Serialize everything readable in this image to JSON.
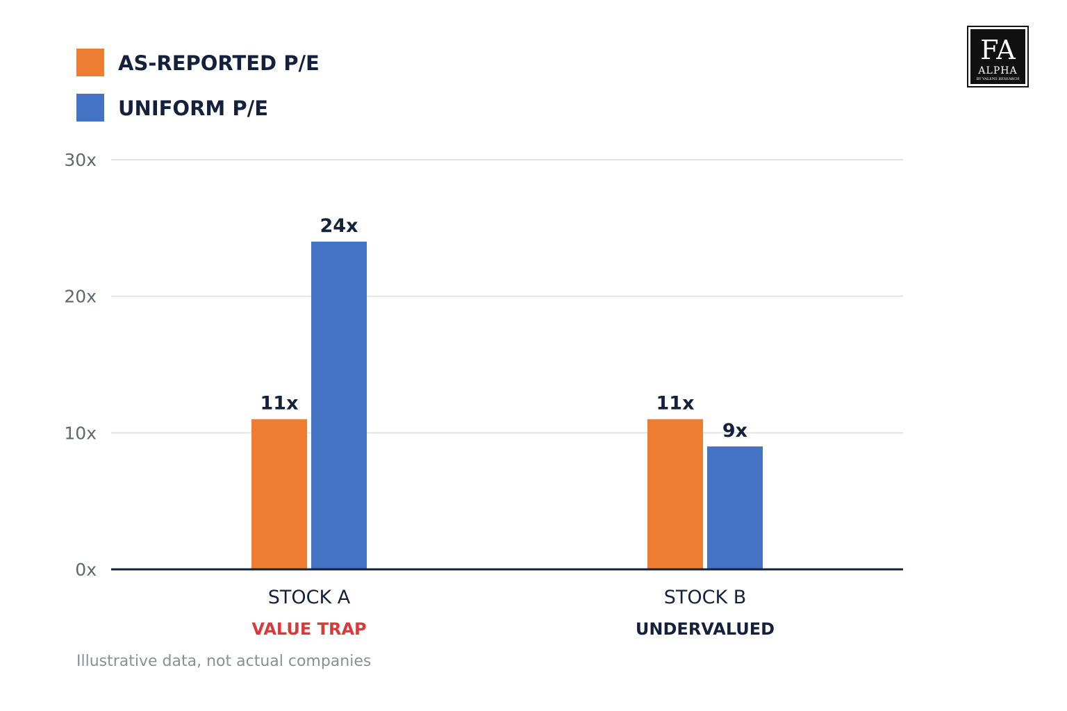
{
  "chart_data": {
    "type": "bar",
    "categories": [
      "STOCK A",
      "STOCK B"
    ],
    "category_sublabels": [
      "VALUE TRAP",
      "UNDERVALUED"
    ],
    "series": [
      {
        "name": "AS-REPORTED P/E",
        "values": [
          11,
          11
        ],
        "labels": [
          "11x",
          "11x"
        ],
        "color": "#ed7d31"
      },
      {
        "name": "UNIFORM P/E",
        "values": [
          24,
          9
        ],
        "labels": [
          "24x",
          "9x"
        ],
        "color": "#4472c4"
      }
    ],
    "yticks": [
      "0x",
      "10x",
      "20x",
      "30x"
    ],
    "ylim": [
      0,
      30
    ],
    "grid": true,
    "legend": "top-left",
    "title": "",
    "xlabel": "",
    "ylabel": ""
  },
  "sublabel_colors": [
    "#d63a3a",
    "#14213d"
  ],
  "footnote": "Illustrative data, not actual companies",
  "logo": {
    "main": "FA",
    "word": "ALPHA",
    "tagline": "BY VALENS RESEARCH"
  }
}
